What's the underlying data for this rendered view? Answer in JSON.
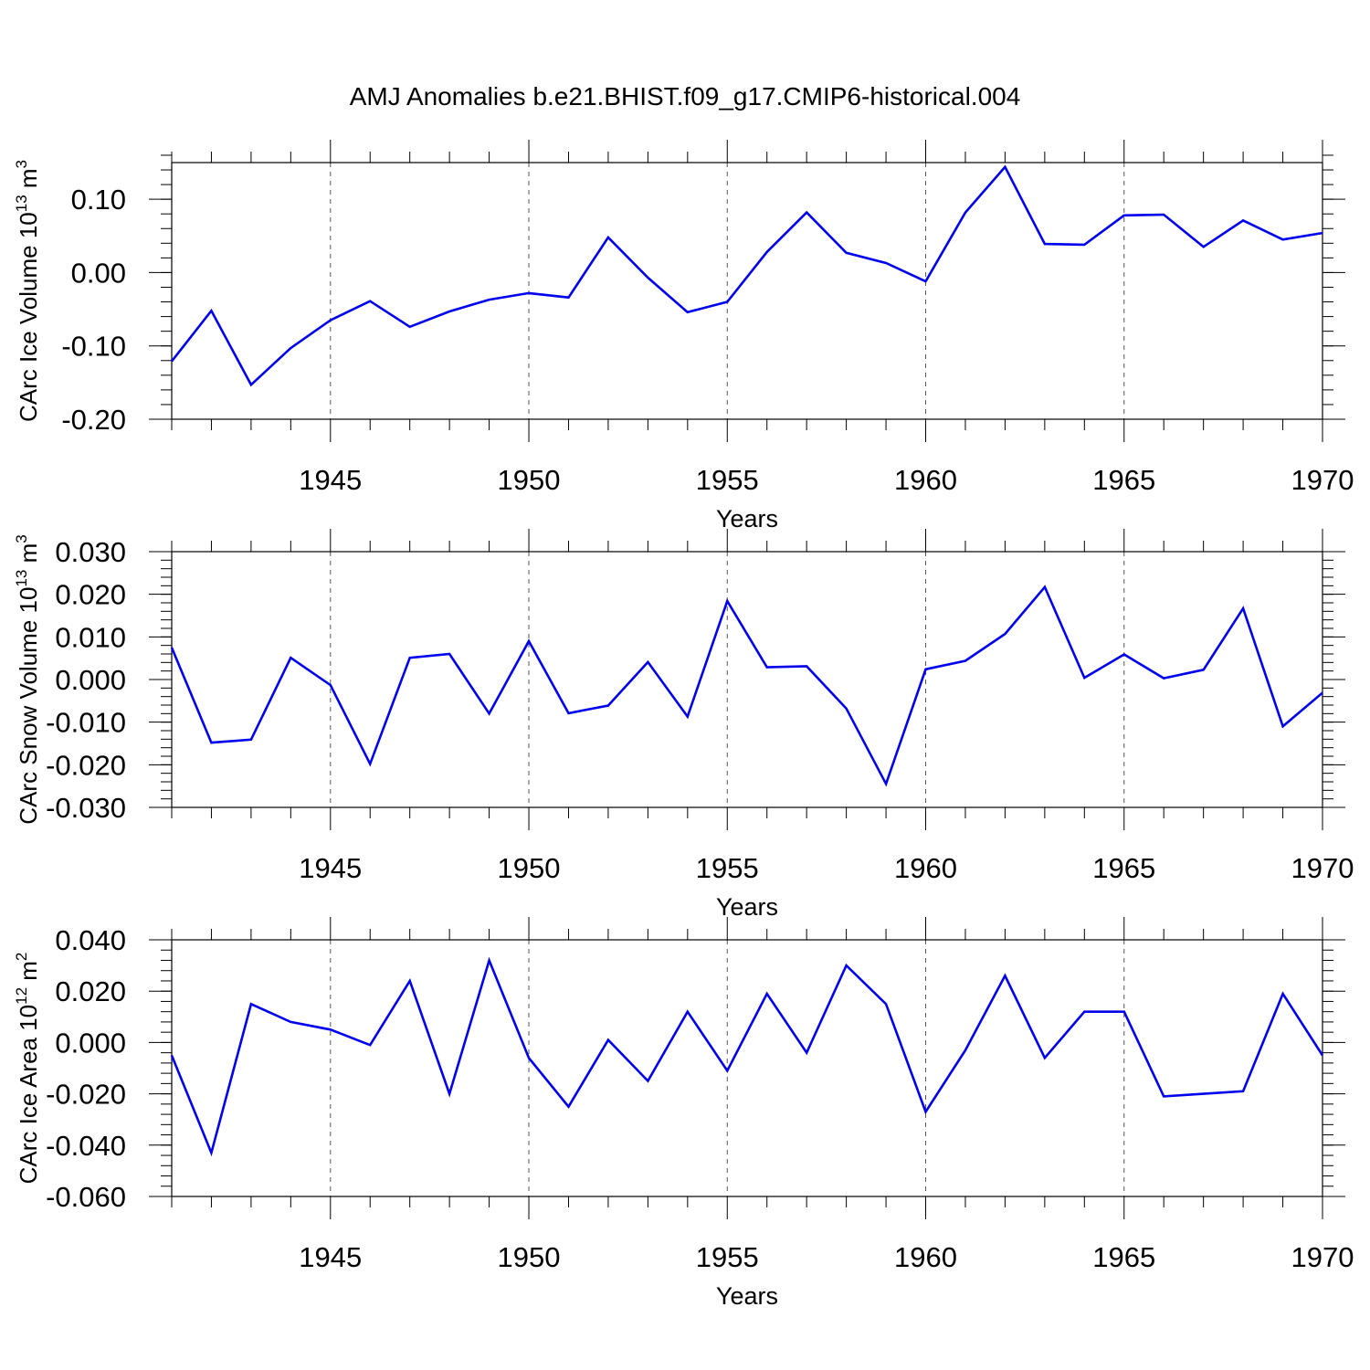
{
  "title": "AMJ Anomalies b.e21.BHIST.f09_g17.CMIP6-historical.004",
  "chart_data": [
    {
      "type": "line",
      "ylabel_base": "CArc Ice Volume 10",
      "ylabel_exp": "13",
      "ylabel_unit": " m",
      "ylabel_unit_exp": "3",
      "xlabel": "Years",
      "xlim": [
        1941,
        1970
      ],
      "ylim": [
        -0.2,
        0.15
      ],
      "yticks": [
        -0.2,
        -0.1,
        0.0,
        0.1
      ],
      "ytick_labels": [
        "-0.20",
        "-0.10",
        "0.00",
        "0.10"
      ],
      "yminor_step": 0.02,
      "xticks": [
        1945,
        1950,
        1955,
        1960,
        1965,
        1970
      ],
      "xtick_labels": [
        "1945",
        "1950",
        "1955",
        "1960",
        "1965",
        "1970"
      ],
      "color": "#0000ee",
      "x": [
        1941,
        1942,
        1943,
        1944,
        1945,
        1946,
        1947,
        1948,
        1949,
        1950,
        1951,
        1952,
        1953,
        1954,
        1955,
        1956,
        1957,
        1958,
        1959,
        1960,
        1961,
        1962,
        1963,
        1964,
        1965,
        1966,
        1967,
        1968,
        1969,
        1970
      ],
      "values": [
        -0.121,
        -0.052,
        -0.153,
        -0.103,
        -0.065,
        -0.039,
        -0.074,
        -0.053,
        -0.037,
        -0.028,
        -0.034,
        0.048,
        -0.007,
        -0.054,
        -0.04,
        0.028,
        0.082,
        0.027,
        0.013,
        -0.012,
        0.082,
        0.144,
        0.039,
        0.038,
        0.078,
        0.079,
        0.035,
        0.071,
        0.045,
        0.054
      ]
    },
    {
      "type": "line",
      "ylabel_base": "CArc Snow Volume 10",
      "ylabel_exp": "13",
      "ylabel_unit": " m",
      "ylabel_unit_exp": "3",
      "xlabel": "Years",
      "xlim": [
        1941,
        1970
      ],
      "ylim": [
        -0.03,
        0.03
      ],
      "yticks": [
        -0.03,
        -0.02,
        -0.01,
        0.0,
        0.01,
        0.02,
        0.03
      ],
      "ytick_labels": [
        "-0.030",
        "-0.020",
        "-0.010",
        "0.000",
        "0.010",
        "0.020",
        "0.030"
      ],
      "yminor_step": 0.002,
      "xticks": [
        1945,
        1950,
        1955,
        1960,
        1965,
        1970
      ],
      "xtick_labels": [
        "1945",
        "1950",
        "1955",
        "1960",
        "1965",
        "1970"
      ],
      "color": "#0000ee",
      "x": [
        1941,
        1942,
        1943,
        1944,
        1945,
        1946,
        1947,
        1948,
        1949,
        1950,
        1951,
        1952,
        1953,
        1954,
        1955,
        1956,
        1957,
        1958,
        1959,
        1960,
        1961,
        1962,
        1963,
        1964,
        1965,
        1966,
        1967,
        1968,
        1969,
        1970
      ],
      "values": [
        0.0075,
        -0.0148,
        -0.0141,
        0.0051,
        -0.0013,
        -0.0198,
        0.0051,
        0.006,
        -0.008,
        0.009,
        -0.0079,
        -0.0061,
        0.0041,
        -0.0087,
        0.0184,
        0.0029,
        0.0031,
        -0.0068,
        -0.0245,
        0.0024,
        0.0044,
        0.0107,
        0.0217,
        0.0004,
        0.0059,
        0.0003,
        0.0023,
        0.0167,
        -0.011,
        -0.0031
      ]
    },
    {
      "type": "line",
      "ylabel_base": "CArc Ice Area 10",
      "ylabel_exp": "12",
      "ylabel_unit": " m",
      "ylabel_unit_exp": "2",
      "xlabel": "Years",
      "xlim": [
        1941,
        1970
      ],
      "ylim": [
        -0.06,
        0.04
      ],
      "yticks": [
        -0.06,
        -0.04,
        -0.02,
        0.0,
        0.02,
        0.04
      ],
      "ytick_labels": [
        "-0.060",
        "-0.040",
        "-0.020",
        "0.000",
        "0.020",
        "0.040"
      ],
      "yminor_step": 0.004,
      "xticks": [
        1945,
        1950,
        1955,
        1960,
        1965,
        1970
      ],
      "xtick_labels": [
        "1945",
        "1950",
        "1955",
        "1960",
        "1965",
        "1970"
      ],
      "color": "#0000ee",
      "x": [
        1941,
        1942,
        1943,
        1944,
        1945,
        1946,
        1947,
        1948,
        1949,
        1950,
        1951,
        1952,
        1953,
        1954,
        1955,
        1956,
        1957,
        1958,
        1959,
        1960,
        1961,
        1962,
        1963,
        1964,
        1965,
        1966,
        1967,
        1968,
        1969,
        1970
      ],
      "values": [
        -0.005,
        -0.043,
        0.015,
        0.008,
        0.005,
        -0.001,
        0.024,
        -0.02,
        0.032,
        -0.006,
        -0.025,
        0.001,
        -0.015,
        0.012,
        -0.011,
        0.019,
        -0.004,
        0.03,
        0.015,
        -0.027,
        -0.003,
        0.026,
        -0.006,
        0.012,
        0.012,
        -0.021,
        -0.02,
        -0.019,
        0.019,
        -0.005
      ]
    }
  ]
}
